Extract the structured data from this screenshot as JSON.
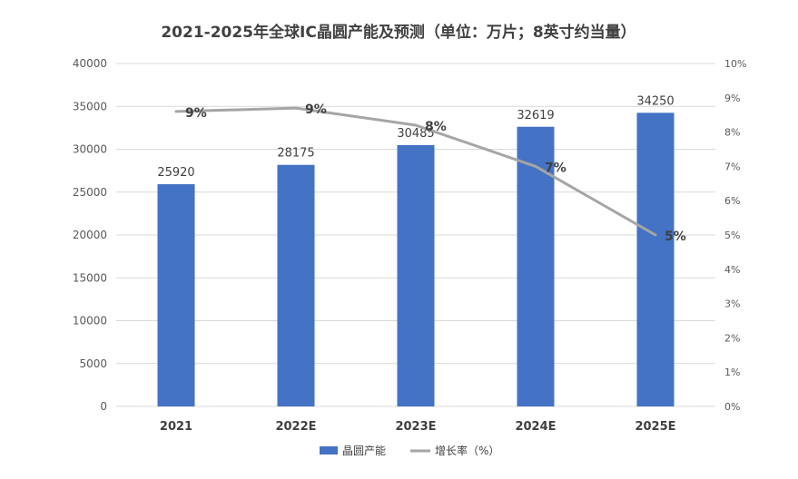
{
  "chart_data": {
    "type": "bar",
    "title": "2021-2025年全球IC晶圆产能及预测（单位：万片；8英寸约当量）",
    "categories": [
      "2021",
      "2022E",
      "2023E",
      "2024E",
      "2025E"
    ],
    "series": [
      {
        "name": "晶圆产能",
        "type": "bar",
        "axis": "left",
        "values": [
          25920,
          28175,
          30485,
          32619,
          34250
        ],
        "labels": [
          "25920",
          "28175",
          "30485",
          "32619",
          "34250"
        ],
        "color": "#4472c4"
      },
      {
        "name": "增长率（%）",
        "type": "line",
        "axis": "right",
        "values": [
          8.6,
          8.7,
          8.2,
          7.0,
          5.0
        ],
        "labels": [
          "9%",
          "9%",
          "8%",
          "7%",
          "5%"
        ],
        "color": "#a5a5a5"
      }
    ],
    "y_left": {
      "ylim": [
        0,
        40000
      ],
      "ticks": [
        "0",
        "5000",
        "10000",
        "15000",
        "20000",
        "25000",
        "30000",
        "35000",
        "40000"
      ]
    },
    "y_right": {
      "ylim": [
        0,
        10
      ],
      "ticks": [
        "0%",
        "1%",
        "2%",
        "3%",
        "4%",
        "5%",
        "6%",
        "7%",
        "8%",
        "9%",
        "10%"
      ]
    },
    "grid": true,
    "legend_position": "bottom"
  }
}
